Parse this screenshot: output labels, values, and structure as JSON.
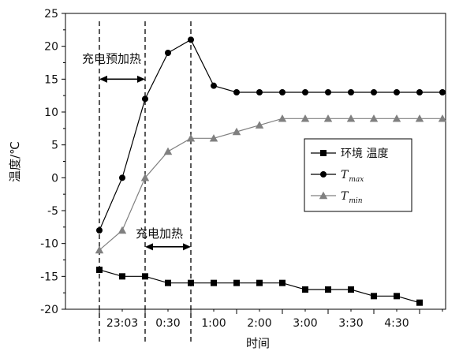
{
  "chart_data": {
    "type": "line",
    "xlabel": "时间",
    "ylabel": "温度/℃",
    "ylim": [
      -20,
      25
    ],
    "yticks": [
      -20,
      -15,
      -10,
      -5,
      0,
      5,
      10,
      15,
      20,
      25
    ],
    "xtick_labels": [
      "23:03",
      "0:30",
      "1:00",
      "2:00",
      "3:00",
      "3:30",
      "4:30"
    ],
    "xtick_positions": [
      2,
      4,
      6,
      8,
      10,
      12,
      14
    ],
    "x": [
      1,
      2,
      3,
      4,
      5,
      6,
      7,
      8,
      9,
      10,
      11,
      12,
      13,
      14,
      15,
      16
    ],
    "series": [
      {
        "name": "环境 温度",
        "marker": "square",
        "values": [
          -14,
          -15,
          -15,
          -16,
          -16,
          -16,
          -16,
          -16,
          -16,
          -17,
          -17,
          -17,
          -18,
          -18,
          -19,
          null
        ],
        "color": "#000000"
      },
      {
        "name": "Tmax",
        "name_main": "T",
        "name_sub": "max",
        "marker": "circle",
        "values": [
          -8,
          0,
          12,
          19,
          21,
          14,
          13,
          13,
          13,
          13,
          13,
          13,
          13,
          13,
          13,
          13
        ],
        "color": "#000000"
      },
      {
        "name": "Tmin",
        "name_main": "T",
        "name_sub": "min",
        "marker": "triangle",
        "values": [
          -11,
          -8,
          0,
          4,
          6,
          6,
          7,
          8,
          9,
          9,
          9,
          9,
          9,
          9,
          9,
          9
        ],
        "color": "#808080"
      }
    ],
    "vlines_x": [
      1,
      3,
      5
    ],
    "annotations": [
      {
        "id": "preheat",
        "text": "充电预加热",
        "x_from": 1,
        "x_to": 3,
        "y": 15
      },
      {
        "id": "heat",
        "text": "充电加热",
        "x_from": 3,
        "x_to": 5,
        "y": -10.5
      }
    ],
    "legend_placement": "right"
  }
}
